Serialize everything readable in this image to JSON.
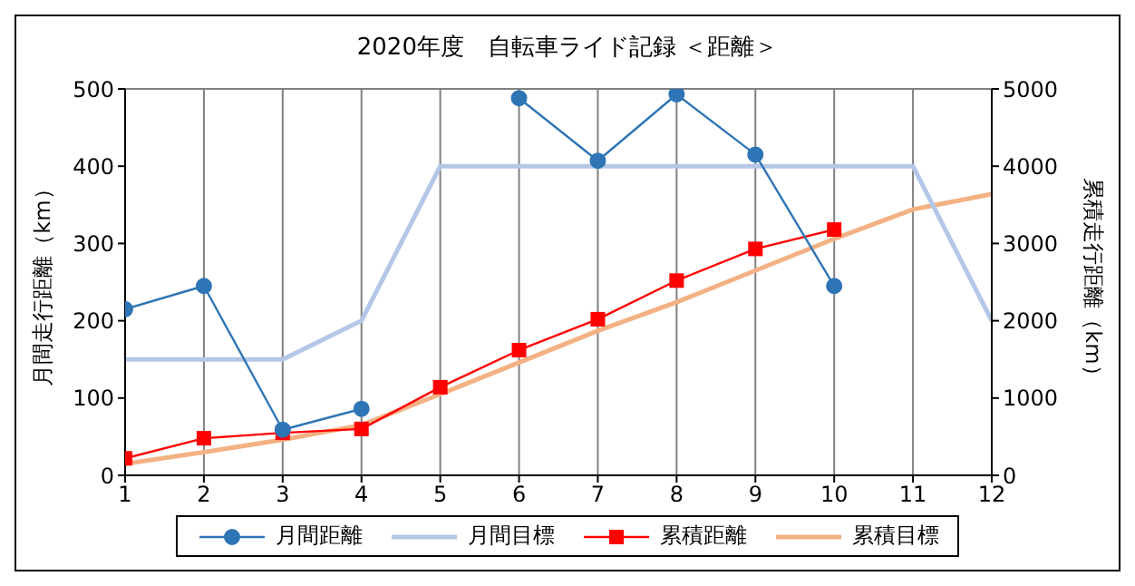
{
  "chart_data": {
    "type": "line",
    "title": "2020年度　自転車ライド記録 ＜距離＞",
    "ylabel": "月間走行距離（km）",
    "y2label": "累積走行距離（km）",
    "x": [
      1,
      2,
      3,
      4,
      5,
      6,
      7,
      8,
      9,
      10,
      11,
      12
    ],
    "xlim": [
      1,
      12
    ],
    "xticks": [
      1,
      2,
      3,
      4,
      5,
      6,
      7,
      8,
      9,
      10,
      11,
      12
    ],
    "ylim": [
      0,
      500
    ],
    "yticks": [
      0,
      100,
      200,
      300,
      400,
      500
    ],
    "y2lim": [
      0,
      5000
    ],
    "y2ticks": [
      0,
      1000,
      2000,
      3000,
      4000,
      5000
    ],
    "grid": true,
    "legend": "bottom",
    "series": [
      {
        "name": "月間距離",
        "color": "#2e75b6",
        "marker": "circle",
        "values": [
          215,
          245,
          59,
          86,
          null,
          488,
          407,
          493,
          415,
          245,
          null,
          null
        ]
      },
      {
        "name": "月間目標",
        "color": "#b4c7e7",
        "marker": "none",
        "values": [
          150,
          150,
          150,
          200,
          400,
          400,
          400,
          400,
          400,
          400,
          400,
          200
        ]
      },
      {
        "name": "累積距離",
        "color": "#ff0000",
        "marker": "square",
        "axis": "y2",
        "values": [
          220,
          480,
          550,
          600,
          1140,
          1620,
          2020,
          2520,
          2930,
          3180,
          null,
          null
        ]
      },
      {
        "name": "累積目標",
        "color": "#f4b183",
        "marker": "none",
        "axis": "y2",
        "values": [
          150,
          300,
          460,
          650,
          1050,
          1460,
          1870,
          2240,
          2650,
          3060,
          3440,
          3640
        ]
      }
    ]
  }
}
